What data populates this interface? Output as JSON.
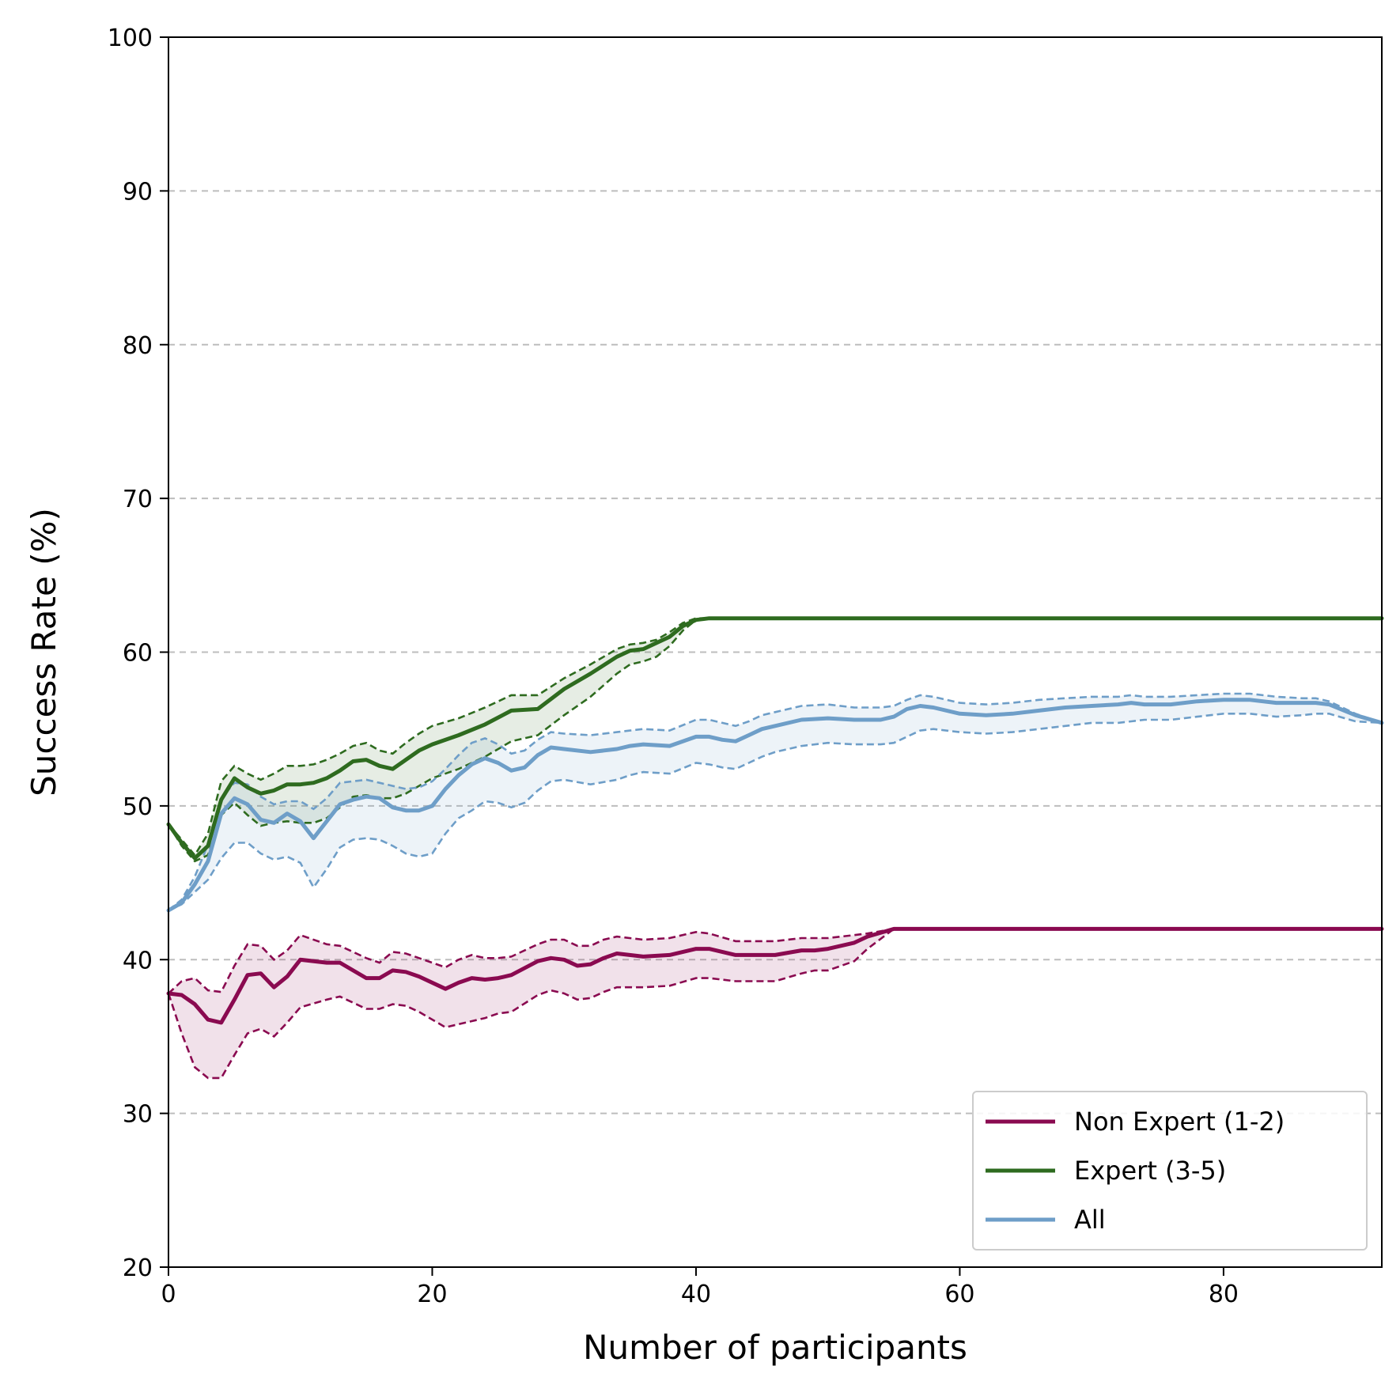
{
  "chart_data": {
    "type": "line",
    "xlabel": "Number of participants",
    "ylabel": "Success Rate (%)",
    "xlim": [
      0,
      92
    ],
    "ylim": [
      20,
      100
    ],
    "x_ticks": [
      0,
      20,
      40,
      60,
      80
    ],
    "y_ticks": [
      20,
      30,
      40,
      50,
      60,
      70,
      80,
      90,
      100
    ],
    "grid": "horizontal dashed",
    "legend_placement": "lower-right",
    "series": [
      {
        "name": "Non Expert (1-2)",
        "color": "#8a0a50",
        "x": [
          0,
          1,
          2,
          3,
          4,
          5,
          6,
          7,
          8,
          9,
          10,
          12,
          13,
          15,
          16,
          17,
          18,
          19,
          21,
          22,
          23,
          24,
          25,
          26,
          28,
          29,
          30,
          31,
          32,
          33,
          34,
          36,
          38,
          40,
          41,
          43,
          46,
          48,
          49,
          50,
          52,
          53,
          55,
          57,
          60,
          70,
          80,
          92
        ],
        "mean": [
          37.8,
          37.7,
          37.1,
          36.1,
          35.9,
          37.4,
          39.0,
          39.1,
          38.2,
          38.9,
          40.0,
          39.8,
          39.8,
          38.8,
          38.8,
          39.3,
          39.2,
          38.9,
          38.1,
          38.5,
          38.8,
          38.7,
          38.8,
          39.0,
          39.9,
          40.1,
          40.0,
          39.6,
          39.7,
          40.1,
          40.4,
          40.2,
          40.3,
          40.7,
          40.7,
          40.3,
          40.3,
          40.6,
          40.6,
          40.7,
          41.1,
          41.5,
          42.0,
          42.0,
          42.0,
          42.0,
          42.0,
          42.0
        ],
        "upper": [
          37.8,
          38.6,
          38.8,
          38.0,
          37.9,
          39.6,
          41.0,
          40.9,
          40.0,
          40.6,
          41.6,
          41.0,
          40.9,
          40.1,
          39.8,
          40.5,
          40.4,
          40.1,
          39.5,
          40.0,
          40.3,
          40.1,
          40.1,
          40.2,
          41.0,
          41.3,
          41.3,
          40.9,
          40.9,
          41.3,
          41.5,
          41.3,
          41.4,
          41.8,
          41.7,
          41.2,
          41.2,
          41.4,
          41.4,
          41.4,
          41.6,
          41.7,
          42.0,
          42.0,
          42.0,
          42.0,
          42.0,
          42.0
        ],
        "lower": [
          37.8,
          35.2,
          33.0,
          32.3,
          32.3,
          33.8,
          35.2,
          35.5,
          35.0,
          35.9,
          36.9,
          37.4,
          37.6,
          36.8,
          36.8,
          37.1,
          37.0,
          36.6,
          35.6,
          35.8,
          36.0,
          36.2,
          36.5,
          36.6,
          37.7,
          38.0,
          37.8,
          37.4,
          37.5,
          37.9,
          38.2,
          38.2,
          38.3,
          38.8,
          38.8,
          38.6,
          38.6,
          39.1,
          39.3,
          39.3,
          39.9,
          40.7,
          42.0,
          42.0,
          42.0,
          42.0,
          42.0,
          42.0
        ]
      },
      {
        "name": "Expert (3-5)",
        "color": "#2e6b1f",
        "x": [
          0,
          1,
          2,
          3,
          4,
          5,
          6,
          7,
          8,
          9,
          10,
          11,
          12,
          13,
          14,
          15,
          16,
          17,
          18,
          19,
          20,
          22,
          24,
          26,
          28,
          30,
          32,
          34,
          35,
          36,
          37,
          38,
          39,
          40,
          41,
          50,
          60,
          70,
          80,
          92
        ],
        "mean": [
          48.8,
          47.6,
          46.6,
          47.4,
          50.4,
          51.8,
          51.2,
          50.8,
          51.0,
          51.4,
          51.4,
          51.5,
          51.8,
          52.3,
          52.9,
          53.0,
          52.6,
          52.4,
          53.0,
          53.6,
          54.0,
          54.6,
          55.3,
          56.2,
          56.3,
          57.6,
          58.6,
          59.7,
          60.1,
          60.2,
          60.6,
          61.0,
          61.7,
          62.1,
          62.2,
          62.2,
          62.2,
          62.2,
          62.2,
          62.2
        ],
        "upper": [
          48.8,
          47.8,
          46.8,
          48.2,
          51.6,
          52.6,
          52.1,
          51.7,
          52.1,
          52.6,
          52.6,
          52.7,
          53.0,
          53.4,
          53.9,
          54.1,
          53.6,
          53.4,
          54.1,
          54.7,
          55.2,
          55.7,
          56.4,
          57.2,
          57.2,
          58.3,
          59.2,
          60.2,
          60.5,
          60.6,
          60.8,
          61.3,
          61.9,
          62.2,
          62.2,
          62.2,
          62.2,
          62.2,
          62.2,
          62.2
        ],
        "lower": [
          48.8,
          47.4,
          46.4,
          46.8,
          49.4,
          50.2,
          49.4,
          48.7,
          48.9,
          49.0,
          48.9,
          48.9,
          49.2,
          49.9,
          50.6,
          50.7,
          50.5,
          50.5,
          50.8,
          51.3,
          51.8,
          52.4,
          53.2,
          54.2,
          54.6,
          55.9,
          57.1,
          58.6,
          59.2,
          59.4,
          59.7,
          60.4,
          61.4,
          62.1,
          62.2,
          62.2,
          62.2,
          62.2,
          62.2,
          62.2
        ]
      },
      {
        "name": "All",
        "color": "#6e9ec8",
        "x": [
          0,
          1,
          2,
          3,
          4,
          5,
          6,
          7,
          8,
          9,
          10,
          11,
          12,
          13,
          14,
          15,
          16,
          17,
          18,
          19,
          20,
          21,
          22,
          23,
          24,
          25,
          26,
          27,
          28,
          29,
          30,
          32,
          34,
          35,
          36,
          38,
          40,
          41,
          42,
          43,
          44,
          45,
          46,
          48,
          50,
          52,
          54,
          55,
          56,
          57,
          58,
          60,
          62,
          64,
          66,
          68,
          70,
          72,
          73,
          74,
          76,
          78,
          80,
          82,
          84,
          86,
          87,
          88,
          90,
          92
        ],
        "mean": [
          43.2,
          43.7,
          44.9,
          46.4,
          49.5,
          50.5,
          50.1,
          49.1,
          48.9,
          49.5,
          49.0,
          47.9,
          49.0,
          50.1,
          50.4,
          50.6,
          50.5,
          49.9,
          49.7,
          49.7,
          50.0,
          51.1,
          52.0,
          52.7,
          53.1,
          52.8,
          52.3,
          52.5,
          53.3,
          53.8,
          53.7,
          53.5,
          53.7,
          53.9,
          54.0,
          53.9,
          54.5,
          54.5,
          54.3,
          54.2,
          54.6,
          55.0,
          55.2,
          55.6,
          55.7,
          55.6,
          55.6,
          55.8,
          56.3,
          56.5,
          56.4,
          56.0,
          55.9,
          56.0,
          56.2,
          56.4,
          56.5,
          56.6,
          56.7,
          56.6,
          56.6,
          56.8,
          56.9,
          56.9,
          56.7,
          56.7,
          56.7,
          56.6,
          55.9,
          55.4
        ],
        "upper": [
          43.2,
          43.9,
          45.4,
          47.5,
          50.5,
          51.5,
          51.4,
          50.6,
          50.1,
          50.3,
          50.3,
          49.8,
          50.5,
          51.5,
          51.6,
          51.7,
          51.5,
          51.3,
          51.1,
          51.2,
          51.6,
          52.4,
          53.3,
          54.1,
          54.4,
          54.0,
          53.4,
          53.6,
          54.3,
          54.8,
          54.7,
          54.6,
          54.8,
          54.9,
          55.0,
          54.9,
          55.6,
          55.6,
          55.4,
          55.2,
          55.5,
          55.9,
          56.1,
          56.5,
          56.6,
          56.4,
          56.4,
          56.5,
          56.9,
          57.2,
          57.1,
          56.7,
          56.6,
          56.7,
          56.9,
          57.0,
          57.1,
          57.1,
          57.2,
          57.1,
          57.1,
          57.2,
          57.3,
          57.3,
          57.1,
          57.0,
          57.0,
          56.8,
          56.0,
          55.4
        ],
        "lower": [
          43.2,
          43.6,
          44.4,
          45.2,
          46.6,
          47.6,
          47.6,
          46.9,
          46.5,
          46.7,
          46.3,
          44.7,
          45.9,
          47.3,
          47.8,
          47.9,
          47.8,
          47.4,
          46.9,
          46.7,
          46.9,
          48.2,
          49.2,
          49.7,
          50.3,
          50.2,
          49.9,
          50.2,
          51.0,
          51.6,
          51.7,
          51.4,
          51.7,
          52.0,
          52.2,
          52.1,
          52.8,
          52.7,
          52.5,
          52.4,
          52.8,
          53.2,
          53.5,
          53.9,
          54.1,
          54.0,
          54.0,
          54.1,
          54.5,
          54.9,
          55.0,
          54.8,
          54.7,
          54.8,
          55.0,
          55.2,
          55.4,
          55.4,
          55.5,
          55.6,
          55.6,
          55.8,
          56.0,
          56.0,
          55.8,
          55.9,
          56.0,
          56.0,
          55.5,
          55.4
        ]
      }
    ]
  }
}
